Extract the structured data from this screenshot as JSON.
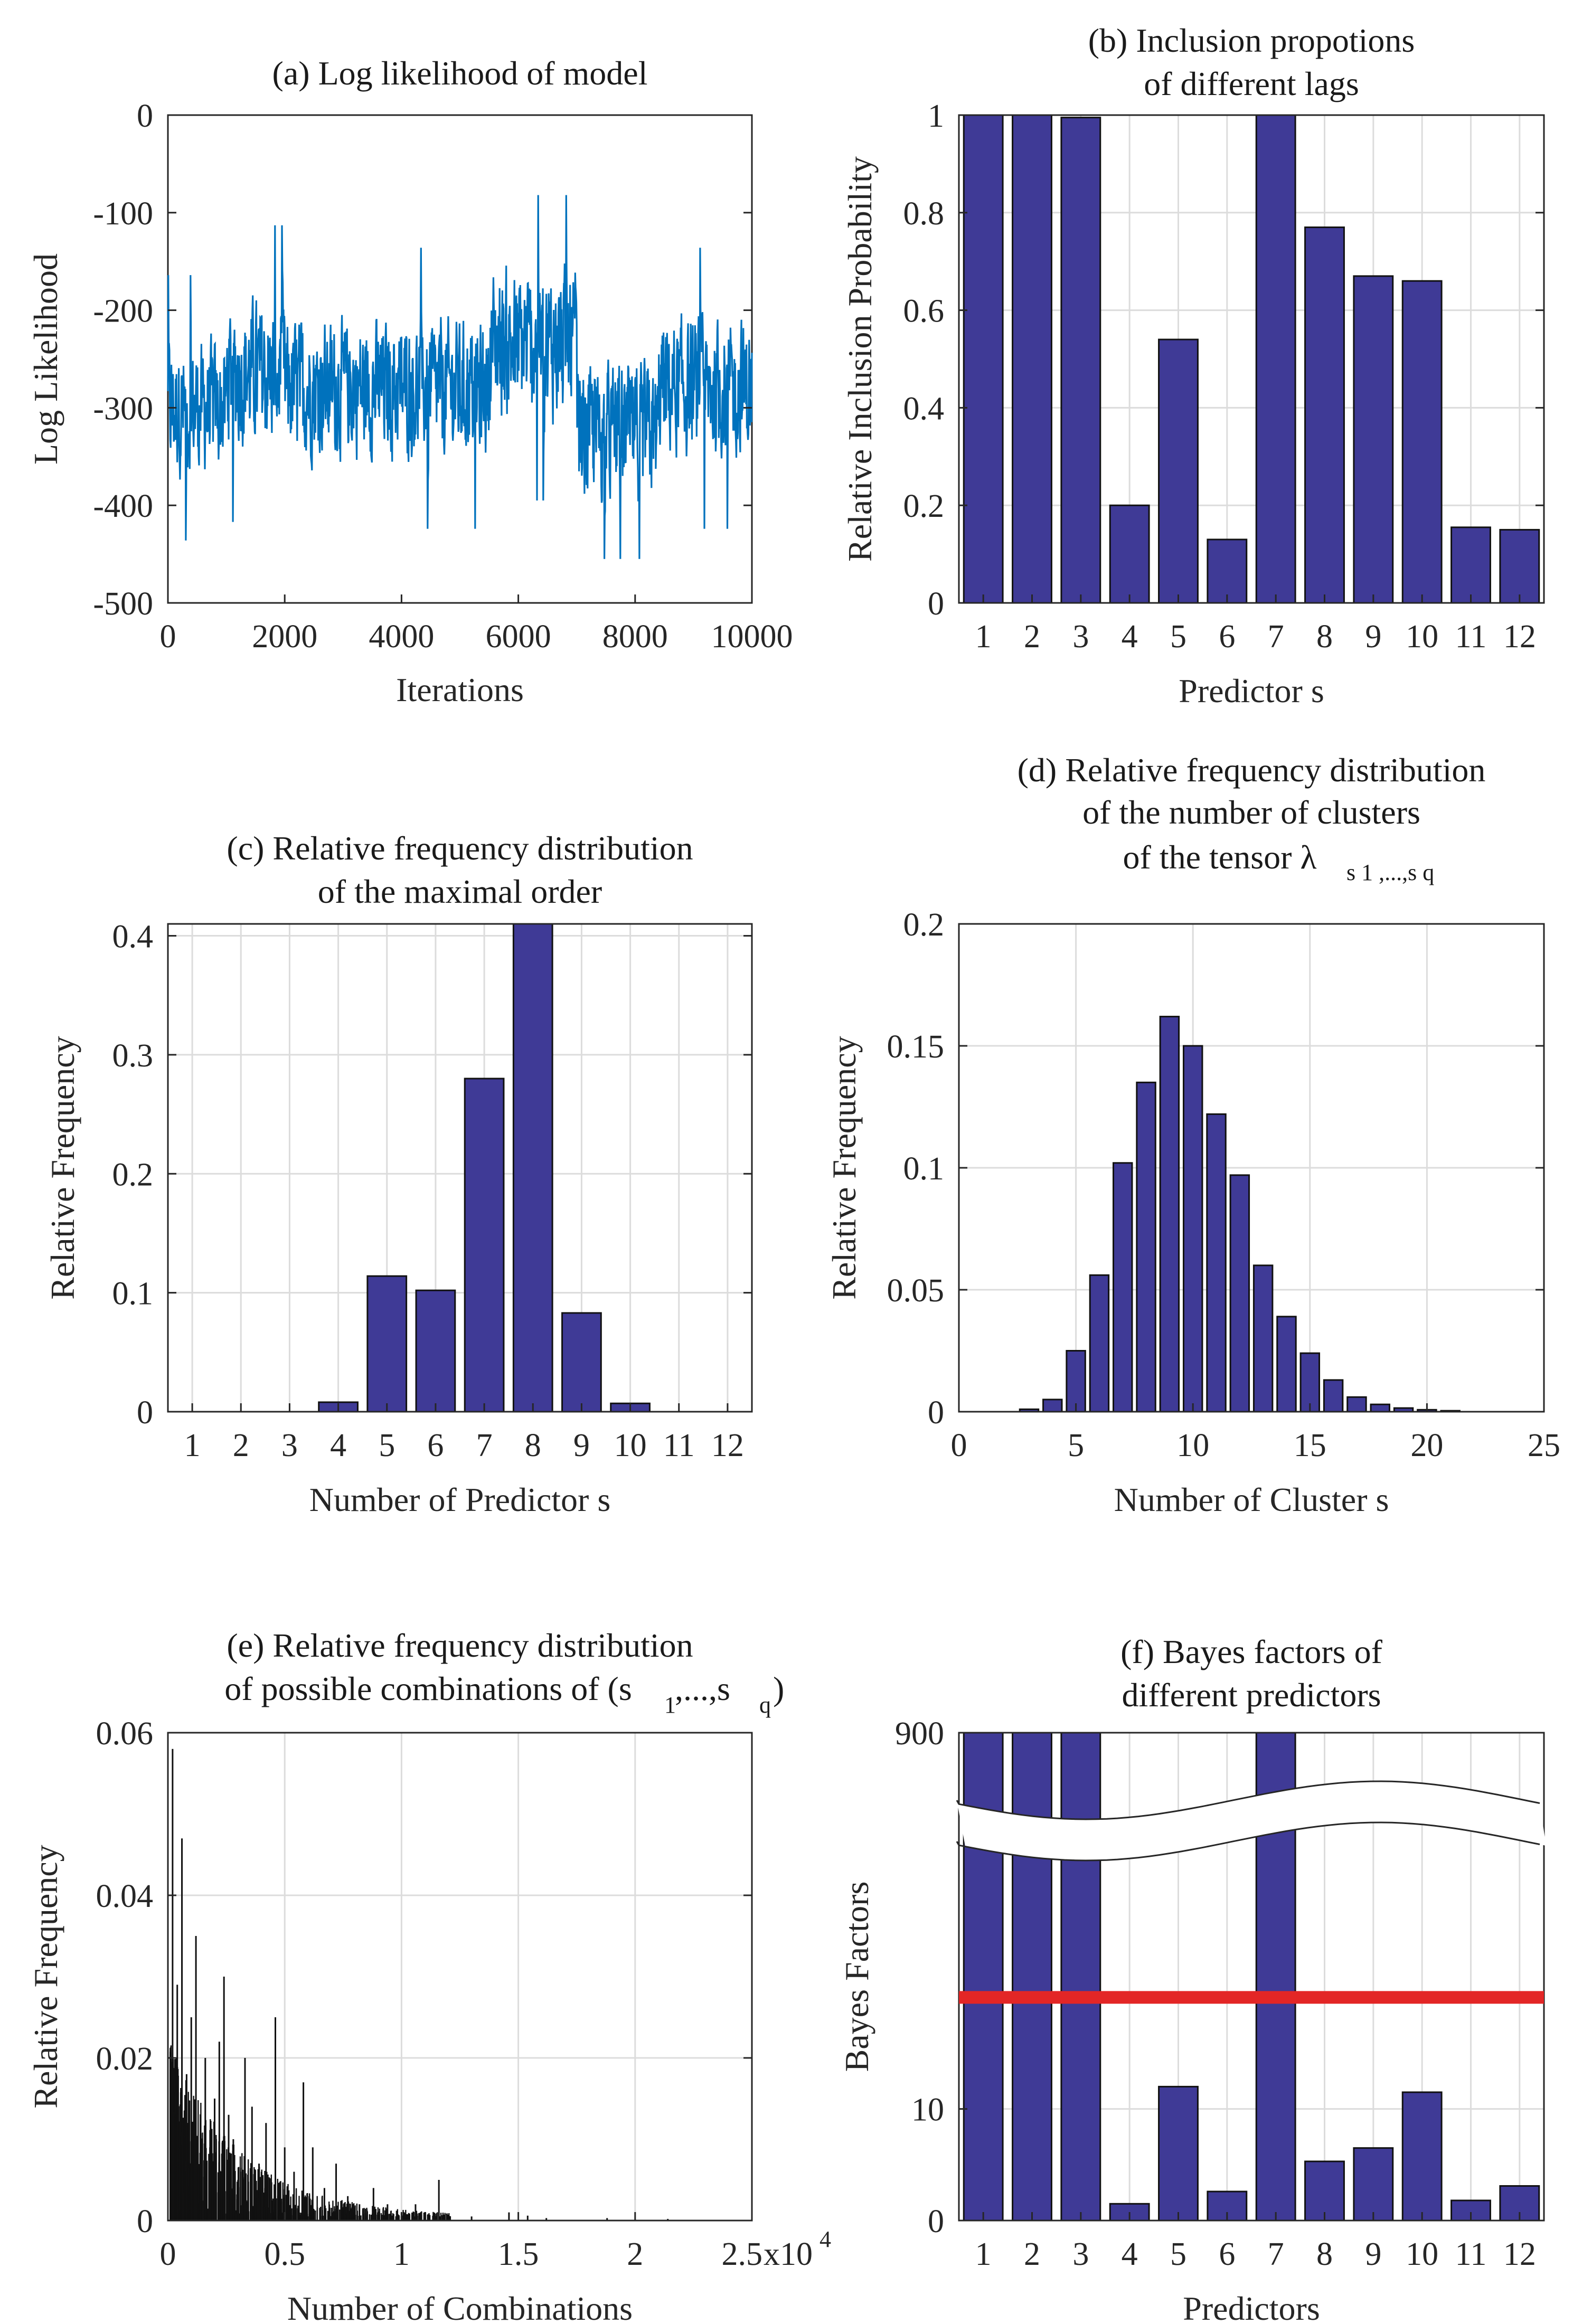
{
  "chart_data": [
    {
      "id": "a",
      "type": "line",
      "title": [
        "(a) Log likelihood of model"
      ],
      "xlabel": "Iterations",
      "ylabel": "Log Likelihood",
      "xlim": [
        0,
        10000
      ],
      "ylim": [
        -500,
        0
      ],
      "xticks": [
        0,
        2000,
        4000,
        6000,
        8000,
        10000
      ],
      "yticks": [
        0,
        -100,
        -200,
        -300,
        -400,
        -500
      ],
      "grid": false,
      "color": "#0072bd",
      "segments": [
        {
          "x0": 0,
          "x1": 1000,
          "mean": -300,
          "amp": 85
        },
        {
          "x0": 1000,
          "x1": 2000,
          "mean": -265,
          "amp": 95
        },
        {
          "x0": 2000,
          "x1": 5500,
          "mean": -280,
          "amp": 90
        },
        {
          "x0": 5500,
          "x1": 7000,
          "mean": -235,
          "amp": 100
        },
        {
          "x0": 7000,
          "x1": 8400,
          "mean": -325,
          "amp": 90
        },
        {
          "x0": 8400,
          "x1": 10000,
          "mean": -280,
          "amp": 90
        }
      ],
      "n_points": 1500
    },
    {
      "id": "b",
      "type": "bar",
      "title": [
        "(b) Inclusion propotions",
        "of different lags"
      ],
      "xlabel": "Predictor s",
      "ylabel": "Relative Inclusion Probability",
      "categories": [
        "1",
        "2",
        "3",
        "4",
        "5",
        "6",
        "7",
        "8",
        "9",
        "10",
        "11",
        "12"
      ],
      "values": [
        1.0,
        1.0,
        0.995,
        0.2,
        0.54,
        0.13,
        1.0,
        0.77,
        0.67,
        0.66,
        0.155,
        0.15
      ],
      "ylim": [
        0,
        1
      ],
      "yticks": [
        0,
        0.2,
        0.4,
        0.6,
        0.8,
        1
      ],
      "ytick_labels": [
        "0",
        "0.2",
        "0.4",
        "0.6",
        "0.8",
        "1"
      ],
      "grid": true,
      "color": "#3f3a96"
    },
    {
      "id": "c",
      "type": "bar",
      "title": [
        "(c) Relative frequency distribution",
        "of the maximal order"
      ],
      "xlabel": "Number of Predictor s",
      "ylabel": "Relative Frequency",
      "categories": [
        "1",
        "2",
        "3",
        "4",
        "5",
        "6",
        "7",
        "8",
        "9",
        "10",
        "11",
        "12"
      ],
      "values": [
        0,
        0,
        0,
        0.008,
        0.114,
        0.102,
        0.28,
        0.41,
        0.083,
        0.007,
        0,
        0
      ],
      "ylim": [
        0,
        0.41
      ],
      "yticks": [
        0,
        0.1,
        0.2,
        0.3,
        0.4
      ],
      "ytick_labels": [
        "0",
        "0.1",
        "0.2",
        "0.3",
        "0.4"
      ],
      "grid": true,
      "color": "#3f3a96"
    },
    {
      "id": "d",
      "type": "bar",
      "title": [
        "(d) Relative frequency distribution",
        "of the number of clusters",
        "of the tensor λ"
      ],
      "title_subscript": "s 1 ,...,s q",
      "xlabel": "Number of Cluster s",
      "ylabel": "Relative Frequency",
      "x": [
        1,
        2,
        3,
        4,
        5,
        6,
        7,
        8,
        9,
        10,
        11,
        12,
        13,
        14,
        15,
        16,
        17,
        18,
        19,
        20,
        21,
        22,
        23,
        24
      ],
      "values": [
        0,
        0,
        0.001,
        0.005,
        0.025,
        0.056,
        0.102,
        0.135,
        0.162,
        0.15,
        0.122,
        0.097,
        0.06,
        0.039,
        0.024,
        0.013,
        0.006,
        0.003,
        0.0015,
        0.0008,
        0.0004,
        0,
        0,
        0
      ],
      "xlim": [
        0,
        25
      ],
      "ylim": [
        0,
        0.2
      ],
      "xticks": [
        0,
        5,
        10,
        15,
        20,
        25
      ],
      "yticks": [
        0,
        0.05,
        0.1,
        0.15,
        0.2
      ],
      "ytick_labels": [
        "0",
        "0.05",
        "0.1",
        "0.15",
        "0.2"
      ],
      "grid": true,
      "color": "#3f3a96"
    },
    {
      "id": "e",
      "type": "bar",
      "title": [
        "(e) Relative frequency distribution",
        "of possible combinations of (s"
      ],
      "title_tail": ",...,s",
      "title_sub1": "1",
      "title_sub2": "q",
      "title_close": ")",
      "xlabel": "Number of Combinations",
      "ylabel": "Relative Frequency",
      "xlim": [
        0,
        2.5
      ],
      "xticks": [
        0,
        0.5,
        1,
        1.5,
        2,
        2.5
      ],
      "xtick_labels": [
        "0",
        "0.5",
        "1",
        "1.5",
        "2",
        "2.5"
      ],
      "x_exponent_base": "x10",
      "x_exponent_power": "4",
      "ylim": [
        0,
        0.06
      ],
      "yticks": [
        0,
        0.02,
        0.04,
        0.06
      ],
      "ytick_labels": [
        "0",
        "0.02",
        "0.04",
        "0.06"
      ],
      "grid": true,
      "color": "#111111",
      "spikes": [
        [
          0.02,
          0.058
        ],
        [
          0.04,
          0.029
        ],
        [
          0.06,
          0.047
        ],
        [
          0.08,
          0.018
        ],
        [
          0.1,
          0.025
        ],
        [
          0.12,
          0.035
        ],
        [
          0.14,
          0.012
        ],
        [
          0.16,
          0.02
        ],
        [
          0.18,
          0.009
        ],
        [
          0.2,
          0.015
        ],
        [
          0.22,
          0.022
        ],
        [
          0.24,
          0.03
        ],
        [
          0.26,
          0.013
        ],
        [
          0.28,
          0.01
        ],
        [
          0.3,
          0.005
        ],
        [
          0.33,
          0.02
        ],
        [
          0.36,
          0.014
        ],
        [
          0.39,
          0.007
        ],
        [
          0.42,
          0.012
        ],
        [
          0.46,
          0.025
        ],
        [
          0.5,
          0.009
        ],
        [
          0.54,
          0.006
        ],
        [
          0.58,
          0.017
        ],
        [
          0.62,
          0.009
        ],
        [
          0.67,
          0.004
        ],
        [
          0.72,
          0.007
        ],
        [
          0.77,
          0.003
        ],
        [
          0.82,
          0.002
        ],
        [
          0.88,
          0.004
        ],
        [
          0.94,
          0.002
        ],
        [
          1.0,
          0.001
        ],
        [
          1.06,
          0.002
        ],
        [
          1.1,
          0.001
        ],
        [
          1.16,
          0.005
        ],
        [
          1.3,
          0.0005
        ],
        [
          1.46,
          0.001
        ],
        [
          1.54,
          0.0006
        ],
        [
          1.62,
          0.0003
        ],
        [
          1.88,
          0.0003
        ],
        [
          2.14,
          0.0002
        ]
      ],
      "noise_points": 900
    },
    {
      "id": "f",
      "type": "bar",
      "title": [
        "(f) Bayes factors of",
        "different predictors"
      ],
      "xlabel": "Predictors",
      "ylabel": "Bayes Factors",
      "categories": [
        "1",
        "2",
        "3",
        "4",
        "5",
        "6",
        "7",
        "8",
        "9",
        "10",
        "11",
        "12"
      ],
      "values": [
        900,
        900,
        900,
        1.5,
        12,
        2.6,
        900,
        5.3,
        6.5,
        11.5,
        1.8,
        3.1
      ],
      "broken_axis": true,
      "yticks": [
        0,
        10,
        900
      ],
      "ytick_labels": [
        "0",
        "10",
        "900"
      ],
      "threshold": {
        "value": 20,
        "color": "#e32626"
      },
      "grid": true,
      "color": "#3f3a96"
    }
  ]
}
